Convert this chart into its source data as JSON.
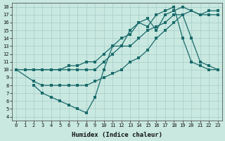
{
  "xlabel": "Humidex (Indice chaleur)",
  "bg_color": "#c8e8e0",
  "line_color": "#1a6b6b",
  "grid_color": "#a8ccc8",
  "xlim": [
    -0.5,
    23.5
  ],
  "ylim": [
    3.5,
    18.5
  ],
  "xticks": [
    0,
    1,
    2,
    3,
    4,
    5,
    6,
    7,
    8,
    9,
    10,
    11,
    12,
    13,
    14,
    15,
    16,
    17,
    18,
    19,
    20,
    21,
    22,
    23
  ],
  "yticks": [
    4,
    5,
    6,
    7,
    8,
    9,
    10,
    11,
    12,
    13,
    14,
    15,
    16,
    17,
    18
  ],
  "line1_x": [
    0,
    2,
    3,
    4,
    5,
    6,
    7,
    8,
    9,
    10,
    11,
    12,
    13,
    14,
    15,
    16,
    17,
    18,
    19,
    20,
    21,
    22,
    23
  ],
  "line1_y": [
    10,
    10,
    10,
    10,
    10,
    10,
    10,
    10,
    10,
    11,
    12,
    13,
    13,
    14,
    15,
    15.5,
    16,
    17,
    17,
    17.5,
    17,
    17,
    17
  ],
  "line2_x": [
    0,
    2,
    3,
    4,
    5,
    6,
    7,
    8,
    9,
    10,
    11,
    12,
    13,
    14,
    15,
    16,
    17,
    18,
    19,
    20,
    21,
    22,
    23
  ],
  "line2_y": [
    10,
    8.5,
    8,
    8,
    8,
    8,
    8,
    8,
    8.5,
    9,
    9.5,
    10,
    11,
    11.5,
    12.5,
    14,
    15,
    16,
    17,
    14,
    11,
    10.5,
    10
  ],
  "line3_x": [
    1,
    2,
    3,
    4,
    5,
    6,
    7,
    8,
    9,
    10,
    11,
    12,
    13,
    14,
    15,
    16,
    17,
    18,
    19,
    20,
    21,
    22,
    23
  ],
  "line3_y": [
    10,
    10,
    10,
    10,
    10,
    10.5,
    10.5,
    11,
    11,
    12,
    13,
    14,
    14.5,
    16,
    16.5,
    15,
    17,
    17.5,
    18,
    17.5,
    17,
    17.5,
    17.5
  ],
  "line4_x": [
    2,
    3,
    4,
    5,
    6,
    7,
    8,
    9,
    10,
    11,
    12,
    13,
    14,
    15,
    16,
    17,
    18,
    19,
    20,
    21,
    22,
    23
  ],
  "line4_y": [
    8,
    7,
    6.5,
    6,
    5.5,
    5,
    4.5,
    6.5,
    10,
    13,
    13,
    15,
    16,
    15.5,
    17,
    17.5,
    18,
    14,
    11,
    10.5,
    10,
    10
  ]
}
